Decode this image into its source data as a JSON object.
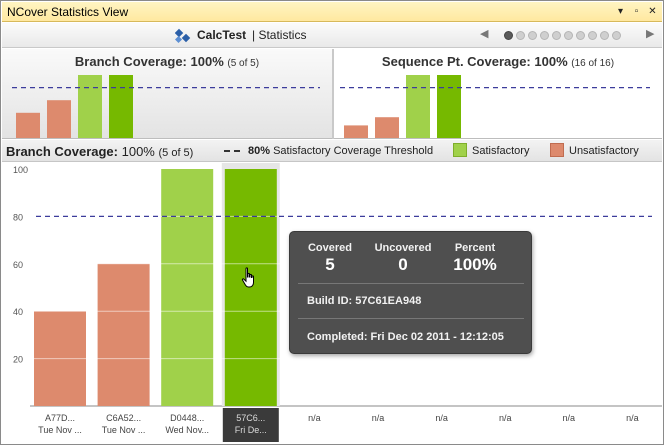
{
  "window": {
    "title": "NCover Statistics View",
    "controls": [
      "▾",
      "▫",
      "✕"
    ]
  },
  "header": {
    "project_name": "CalcTest",
    "section": "| Statistics",
    "pager_count": 10,
    "pager_active": 0,
    "prev_icon": "triangle-left-icon",
    "next_icon": "triangle-right-icon"
  },
  "panels": {
    "branch": {
      "title": "Branch Coverage:",
      "value": "100%",
      "sub": "(5 of 5)"
    },
    "sequence": {
      "title": "Sequence Pt. Coverage:",
      "value": "100%",
      "sub": "(16 of 16)"
    }
  },
  "section_header": {
    "title": "Branch Coverage:",
    "value": "100%",
    "sub": "(5 of 5)",
    "threshold_label_bold": "80%",
    "threshold_label": "Satisfactory Coverage Threshold",
    "legend_satisfactory": "Satisfactory",
    "legend_unsatisfactory": "Unsatisfactory"
  },
  "colors": {
    "unsatisfactory": "#dd8a6d",
    "satisfactory": "#a0d14a",
    "satisfactory_selected": "#76b900",
    "threshold": "#3c3c9c"
  },
  "chart_data": {
    "type": "bar",
    "threshold": 80,
    "ylim": [
      0,
      100
    ],
    "yticks": [
      20,
      40,
      60,
      80,
      100
    ],
    "categories": [
      {
        "label1": "A77D...",
        "label2": "Tue Nov ...",
        "value": 40,
        "status": "unsatisfactory"
      },
      {
        "label1": "C6A52...",
        "label2": "Tue Nov ...",
        "value": 60,
        "status": "unsatisfactory"
      },
      {
        "label1": "D0448...",
        "label2": "Wed Nov...",
        "value": 100,
        "status": "satisfactory"
      },
      {
        "label1": "57C6...",
        "label2": "Fri De...",
        "value": 100,
        "status": "selected"
      },
      {
        "label1": "n/a",
        "label2": "",
        "value": null
      },
      {
        "label1": "n/a",
        "label2": "",
        "value": null
      },
      {
        "label1": "n/a",
        "label2": "",
        "value": null
      },
      {
        "label1": "n/a",
        "label2": "",
        "value": null
      },
      {
        "label1": "n/a",
        "label2": "",
        "value": null
      },
      {
        "label1": "n/a",
        "label2": "",
        "value": null
      }
    ],
    "sequence_values": [
      20,
      33,
      100,
      100
    ]
  },
  "tooltip": {
    "covered_label": "Covered",
    "covered_value": "5",
    "uncovered_label": "Uncovered",
    "uncovered_value": "0",
    "percent_label": "Percent",
    "percent_value": "100%",
    "build_id": "Build ID: 57C61EA948",
    "completed": "Completed: Fri Dec 02 2011 - 12:12:05"
  }
}
